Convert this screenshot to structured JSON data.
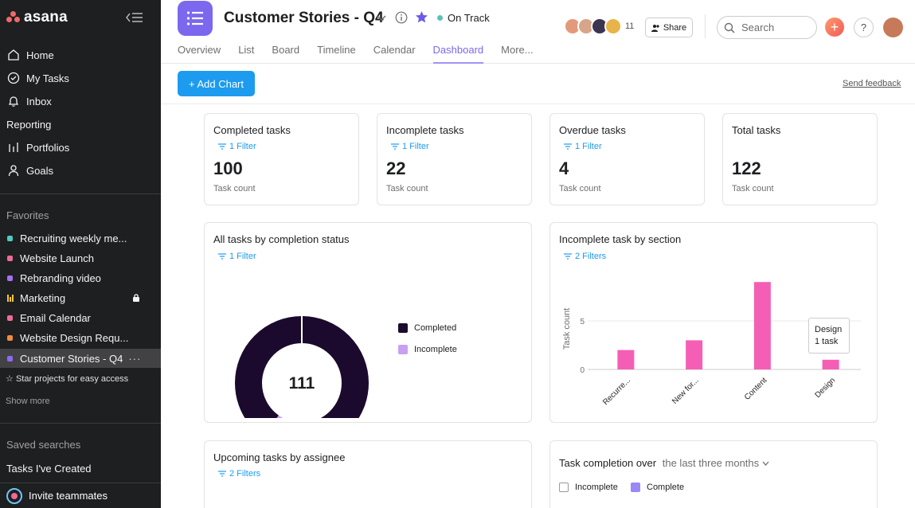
{
  "sidebar": {
    "logo": "asana",
    "nav": [
      {
        "label": "Home",
        "icon": "home-icon"
      },
      {
        "label": "My Tasks",
        "icon": "check-circle-icon"
      },
      {
        "label": "Inbox",
        "icon": "bell-icon"
      }
    ],
    "reporting_label": "Reporting",
    "reporting": [
      {
        "label": "Portfolios",
        "icon": "bar-chart-icon"
      },
      {
        "label": "Goals",
        "icon": "person-icon"
      }
    ],
    "favorites_label": "Favorites",
    "favorites": [
      {
        "label": "Recruiting weekly me...",
        "color": "#4ecbc4"
      },
      {
        "label": "Website Launch",
        "color": "#f06a99"
      },
      {
        "label": "Rebranding video",
        "color": "#a86ef2"
      },
      {
        "label": "Marketing",
        "color": "#f8c53a"
      },
      {
        "label": "Email Calendar",
        "color": "#f06a99"
      },
      {
        "label": "Website Design Requ...",
        "color": "#f48a3a"
      },
      {
        "label": "Customer Stories - Q4",
        "color": "#8d6bf0"
      }
    ],
    "star_hint": "Star projects for easy access",
    "show_more": "Show more",
    "saved_searches_label": "Saved searches",
    "saved_searches": [
      "Tasks I've Created"
    ],
    "invite": "Invite teammates"
  },
  "header": {
    "title": "Customer Stories - Q4",
    "status": "On Track",
    "member_count": "11",
    "share_label": "Share",
    "search_placeholder": "Search",
    "tabs": [
      "Overview",
      "List",
      "Board",
      "Timeline",
      "Calendar",
      "Dashboard",
      "More..."
    ],
    "active_tab": "Dashboard"
  },
  "toolbar": {
    "add_chart": "+ Add Chart",
    "feedback": "Send feedback"
  },
  "stats": [
    {
      "title": "Completed tasks",
      "filter": "1 Filter",
      "value": "100",
      "sub": "Task count"
    },
    {
      "title": "Incomplete tasks",
      "filter": "1 Filter",
      "value": "22",
      "sub": "Task count"
    },
    {
      "title": "Overdue tasks",
      "filter": "1 Filter",
      "value": "4",
      "sub": "Task count"
    },
    {
      "title": "Total tasks",
      "filter": "",
      "value": "122",
      "sub": "Task count"
    }
  ],
  "donut": {
    "title": "All tasks by completion status",
    "filter": "1 Filter",
    "center": "111",
    "legend": [
      "Completed",
      "Incomplete"
    ]
  },
  "bar": {
    "title": "Incomplete task by section",
    "filter": "2 Filters",
    "tooltip_title": "Design",
    "tooltip_value": "1 task"
  },
  "upcoming": {
    "title": "Upcoming tasks by assignee",
    "filter": "2 Filters"
  },
  "completion": {
    "title": "Task completion over",
    "range": "the last three months",
    "legend": [
      "Incomplete",
      "Complete"
    ]
  },
  "chart_data": [
    {
      "type": "pie",
      "title": "All tasks by completion status",
      "labels": [
        "Completed",
        "Incomplete"
      ],
      "values": [
        100,
        11
      ],
      "colors": [
        "#1c0a2e",
        "#c9a0f0"
      ]
    },
    {
      "type": "bar",
      "title": "Incomplete task by section",
      "categories": [
        "Recurre...",
        "New for...",
        "Content",
        "Design"
      ],
      "values": [
        2,
        3,
        9,
        1
      ],
      "ylabel": "Task count",
      "yticks": [
        0,
        5
      ],
      "ylim": [
        0,
        10
      ],
      "color": "#f45fb5"
    }
  ]
}
